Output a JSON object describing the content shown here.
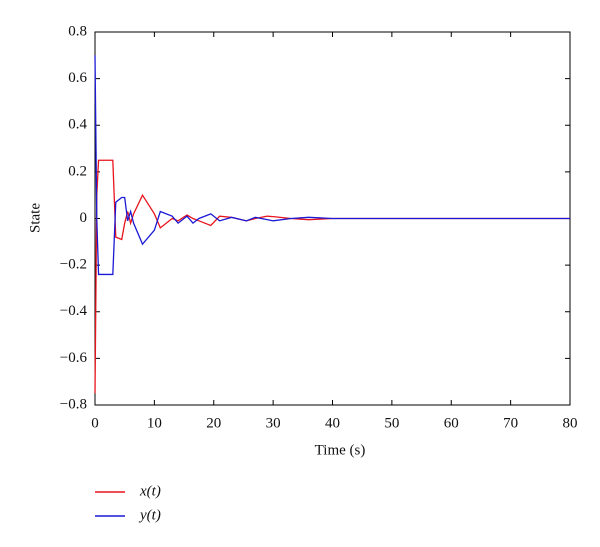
{
  "chart_data": {
    "type": "line",
    "x_label": "Time (s)",
    "y_label": "State",
    "x": [
      0,
      0.3,
      0.6,
      3,
      3.5,
      4.5,
      5,
      5.5,
      6,
      6.5,
      8,
      10,
      11,
      13,
      14,
      15.5,
      16.5,
      17.5,
      19.5,
      21,
      23,
      25.5,
      27,
      29,
      30,
      33,
      36,
      40,
      50,
      60,
      70,
      80
    ],
    "series": [
      {
        "name": "x(t)",
        "color": "#e8141c",
        "values": [
          -0.75,
          0.1,
          0.25,
          0.25,
          -0.08,
          -0.09,
          -0.02,
          0.03,
          -0.02,
          0.02,
          0.1,
          0.02,
          -0.04,
          0,
          -0.01,
          0.015,
          0,
          -0.01,
          -0.03,
          0.01,
          0.005,
          -0.01,
          0,
          0.01,
          0.008,
          0,
          -0.005,
          0,
          0,
          0,
          0,
          0
        ]
      },
      {
        "name": "y(t)",
        "color": "#1a1ad6",
        "values": [
          0.7,
          0,
          -0.24,
          -0.24,
          0.07,
          0.09,
          0.09,
          -0.01,
          0.03,
          -0.02,
          -0.11,
          -0.05,
          0.03,
          0.01,
          -0.02,
          0.01,
          -0.02,
          0,
          0.02,
          -0.01,
          0.005,
          -0.01,
          0.005,
          -0.005,
          -0.01,
          0,
          0.005,
          0,
          0,
          0,
          0,
          0
        ]
      }
    ],
    "xlim": [
      0,
      80
    ],
    "xticks": [
      0,
      10,
      20,
      30,
      40,
      50,
      60,
      70,
      80
    ],
    "ylim": [
      -0.8,
      0.8
    ],
    "yticks": [
      {
        "value": -0.8,
        "label": "−0.8"
      },
      {
        "value": -0.6,
        "label": "−0.6"
      },
      {
        "value": -0.4,
        "label": "−0.4"
      },
      {
        "value": -0.2,
        "label": "−0.2"
      },
      0,
      0.2,
      0.4,
      0.6,
      0.8
    ],
    "legend": "bottom-left",
    "grid": false
  }
}
